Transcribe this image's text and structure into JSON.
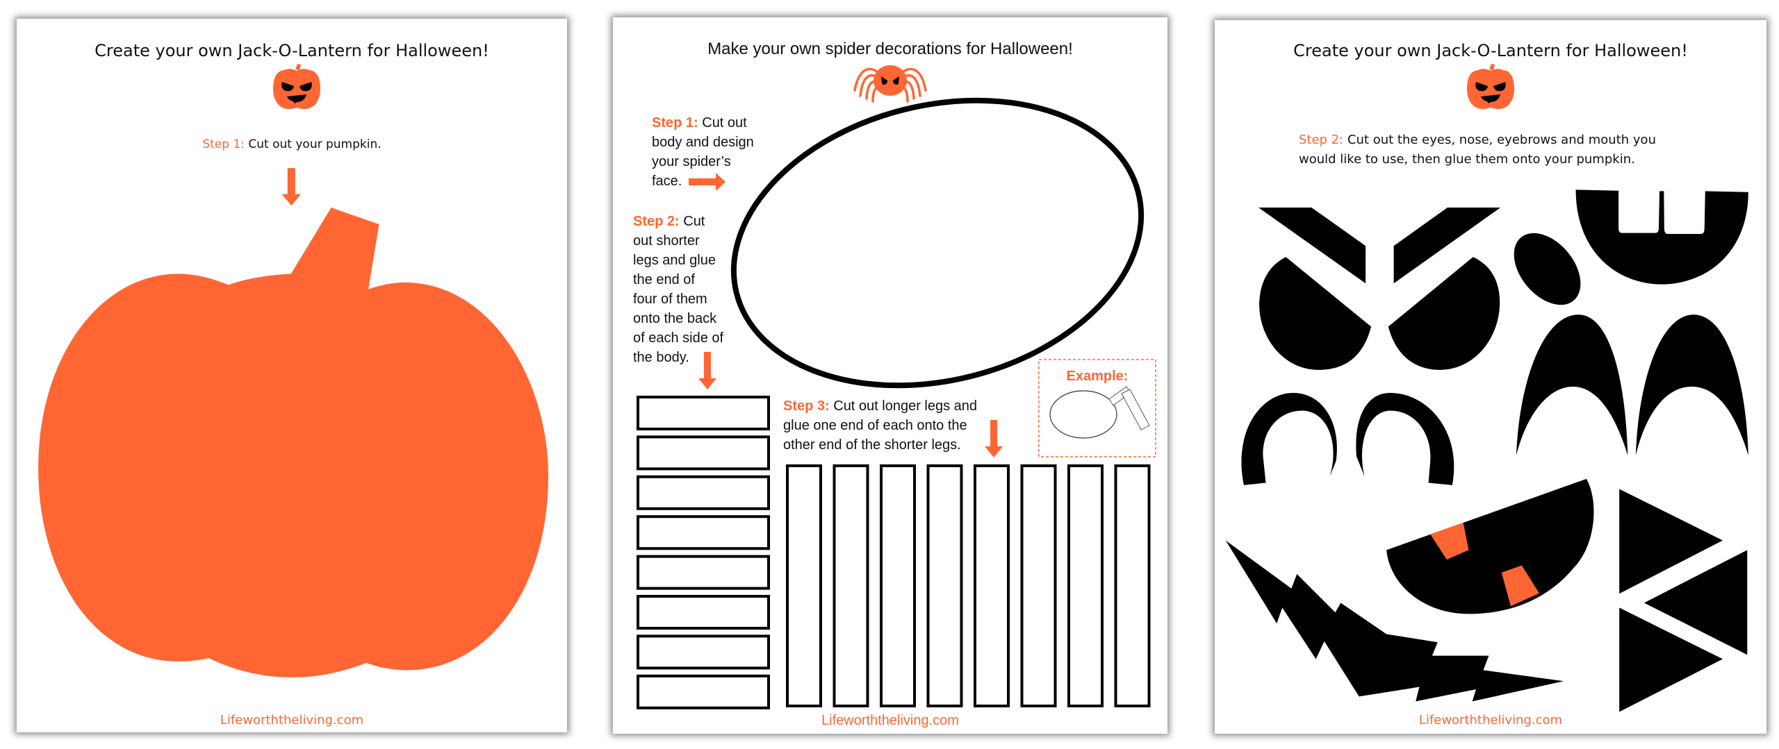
{
  "colors": {
    "accent": "#FF6633",
    "ink": "#000000",
    "page": "#FFFFFF"
  },
  "page1": {
    "title": "Create your own Jack-O-Lantern for Halloween!",
    "icon": "jack-o-lantern-icon",
    "step_label": "Step 1:",
    "step_text": " Cut out your pumpkin.",
    "footer": "Lifeworththeliving.com"
  },
  "page2": {
    "title": "Make your own spider decorations for Halloween!",
    "icon": "spider-icon",
    "step1": {
      "label": "Step 1:",
      "lines": [
        " Cut out",
        "body and design",
        "your spider’s",
        "face."
      ]
    },
    "step2": {
      "label": "Step 2:",
      "lines": [
        " Cut",
        "out shorter",
        "legs and glue",
        "the end of",
        "four of them",
        "onto the back",
        "of each side of",
        "the body."
      ]
    },
    "step3": {
      "label": "Step 3:",
      "lines": [
        " Cut out longer legs and",
        "glue one end of each onto the",
        "other end of the shorter legs."
      ]
    },
    "example_label": "Example:",
    "short_legs_count": 8,
    "long_legs_count": 8,
    "footer": "Lifeworththeliving.com"
  },
  "page3": {
    "title": "Create your own Jack-O-Lantern for Halloween!",
    "icon": "jack-o-lantern-icon",
    "step_label": "Step 2:",
    "step_lines": [
      " Cut out the eyes, nose, eyebrows and mouth you",
      "would like to use, then glue them onto your pumpkin."
    ],
    "footer": "Lifeworththeliving.com"
  }
}
